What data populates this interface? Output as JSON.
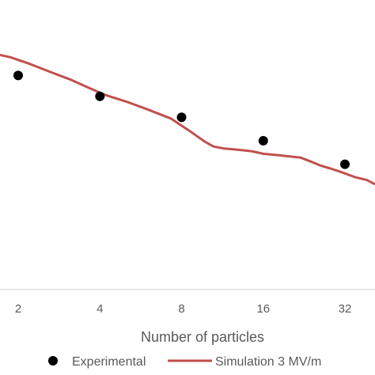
{
  "chart_data": {
    "type": "scatter",
    "title": "",
    "xlabel": "Number of particles",
    "ylabel": "",
    "x_scale": "log2",
    "x_ticks": [
      "2",
      "4",
      "8",
      "16",
      "32"
    ],
    "grid": false,
    "legend_position": "bottom",
    "series": [
      {
        "name": "Experimental",
        "kind": "scatter",
        "color": "#000000",
        "points": [
          [
            2,
            0.82
          ],
          [
            4,
            0.74
          ],
          [
            8,
            0.66
          ],
          [
            16,
            0.57
          ],
          [
            32,
            0.48
          ]
        ]
      },
      {
        "name": "Simulation 3 MV/m",
        "kind": "line",
        "color": "#c0504d",
        "points": [
          [
            1.6,
            0.905
          ],
          [
            1.87,
            0.89
          ],
          [
            2.2,
            0.865
          ],
          [
            2.6,
            0.835
          ],
          [
            3.1,
            0.805
          ],
          [
            3.6,
            0.775
          ],
          [
            4.2,
            0.745
          ],
          [
            5.0,
            0.72
          ],
          [
            6.0,
            0.69
          ],
          [
            7.3,
            0.655
          ],
          [
            8.5,
            0.61
          ],
          [
            9.8,
            0.565
          ],
          [
            10.5,
            0.548
          ],
          [
            11.5,
            0.54
          ],
          [
            13,
            0.535
          ],
          [
            14.5,
            0.53
          ],
          [
            16,
            0.52
          ],
          [
            18,
            0.515
          ],
          [
            20,
            0.51
          ],
          [
            22,
            0.505
          ],
          [
            24,
            0.49
          ],
          [
            26,
            0.475
          ],
          [
            28,
            0.465
          ],
          [
            30,
            0.455
          ],
          [
            32,
            0.445
          ],
          [
            35,
            0.43
          ],
          [
            38.5,
            0.42
          ],
          [
            41,
            0.405
          ]
        ]
      }
    ]
  }
}
